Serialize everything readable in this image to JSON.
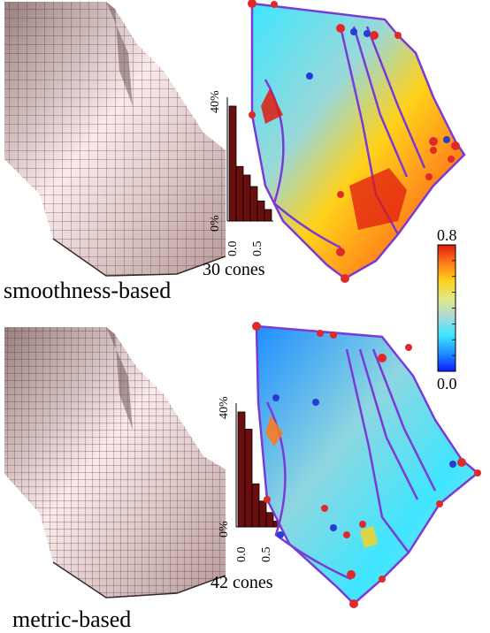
{
  "rows": [
    {
      "label": "smoothness-based",
      "cones_label": "30 cones",
      "histogram": {
        "y_ticks": [
          "0%",
          "40%"
        ],
        "x_ticks": [
          "0.0",
          "0.5"
        ],
        "values": [
          0.4,
          0.19,
          0.16,
          0.12,
          0.07,
          0.04
        ]
      }
    },
    {
      "label": "metric-based",
      "cones_label": "42 cones",
      "histogram": {
        "y_ticks": [
          "0%",
          "40%"
        ],
        "x_ticks": [
          "0.0",
          "0.5"
        ],
        "values": [
          0.4,
          0.34,
          0.15,
          0.09,
          0.05,
          0.02
        ]
      }
    }
  ],
  "colorbar": {
    "max_label": "0.8",
    "min_label": "0.0",
    "colors": [
      "#0a1cff",
      "#1f8fff",
      "#3fe6ff",
      "#a9d9d9",
      "#e0e88a",
      "#ffd21a",
      "#ff7a1a",
      "#e01a10"
    ]
  },
  "colors": {
    "mesh_fill": "#f0d6d6",
    "mesh_line": "#3a2a2a",
    "bar_fill": "#6a0e0e",
    "cone_dot": "#e02a2a",
    "cone_blue": "#2a3ad6",
    "edge_purple": "#7a3ad6"
  }
}
